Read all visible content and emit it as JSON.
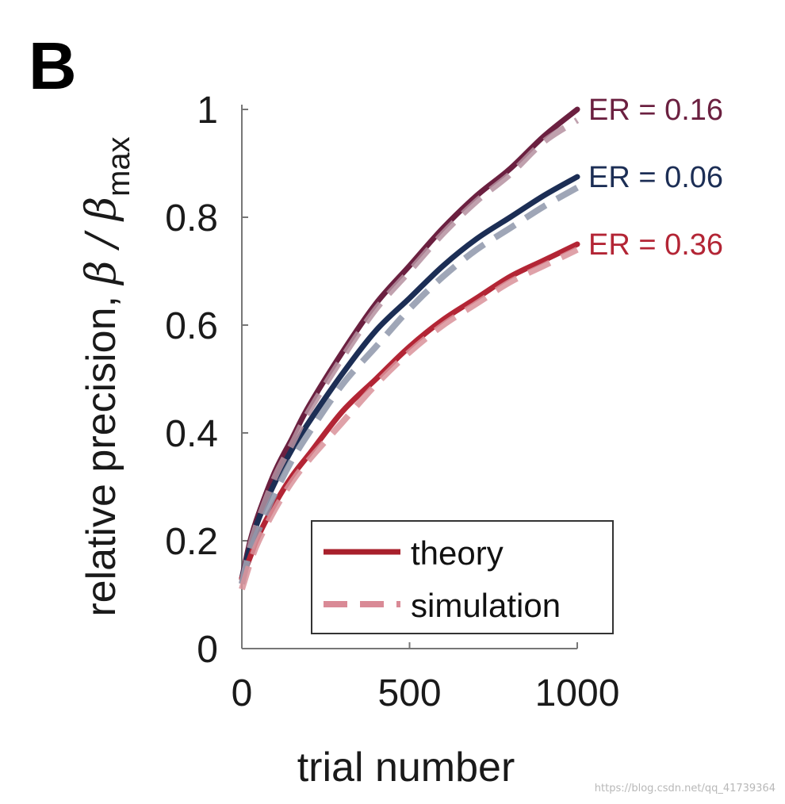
{
  "panel_label": "B",
  "watermark": "https://blog.csdn.net/qq_41739364",
  "chart_data": {
    "type": "line",
    "title": "",
    "xlabel": "trial number",
    "ylabel_text": "relative precision, ",
    "ylabel_symbol": "β / β",
    "ylabel_subscript": "max",
    "xlim": [
      0,
      1000
    ],
    "ylim": [
      0,
      1
    ],
    "xticks": [
      0,
      500,
      1000
    ],
    "xtick_labels": [
      "0",
      "500",
      "1000"
    ],
    "yticks": [
      0,
      0.2,
      0.4,
      0.6,
      0.8,
      1
    ],
    "ytick_labels": [
      "0",
      "0.2",
      "0.4",
      "0.6",
      "0.8",
      "1"
    ],
    "grid": false,
    "x": [
      0,
      25,
      50,
      100,
      150,
      200,
      300,
      400,
      500,
      600,
      700,
      800,
      900,
      1000
    ],
    "series": [
      {
        "name": "ER = 0.16",
        "label": "ER = 0.16",
        "color": "#6b2040",
        "theory": [
          0.13,
          0.2,
          0.25,
          0.33,
          0.39,
          0.45,
          0.55,
          0.64,
          0.71,
          0.78,
          0.84,
          0.89,
          0.95,
          1.0
        ],
        "simulation": [
          0.12,
          0.19,
          0.24,
          0.32,
          0.38,
          0.44,
          0.54,
          0.63,
          0.7,
          0.77,
          0.83,
          0.88,
          0.94,
          0.98
        ]
      },
      {
        "name": "ER = 0.06",
        "label": "ER = 0.06",
        "color": "#1c2e55",
        "theory": [
          0.13,
          0.19,
          0.24,
          0.31,
          0.37,
          0.42,
          0.51,
          0.59,
          0.65,
          0.71,
          0.76,
          0.8,
          0.84,
          0.875
        ],
        "simulation": [
          0.12,
          0.18,
          0.22,
          0.29,
          0.35,
          0.4,
          0.49,
          0.56,
          0.63,
          0.69,
          0.74,
          0.78,
          0.82,
          0.855
        ]
      },
      {
        "name": "ER = 0.36",
        "label": "ER = 0.36",
        "color": "#b32535",
        "theory": [
          0.13,
          0.17,
          0.21,
          0.27,
          0.32,
          0.36,
          0.44,
          0.5,
          0.56,
          0.61,
          0.65,
          0.69,
          0.72,
          0.75
        ],
        "simulation": [
          0.11,
          0.16,
          0.2,
          0.26,
          0.31,
          0.35,
          0.42,
          0.49,
          0.55,
          0.6,
          0.64,
          0.68,
          0.71,
          0.74
        ]
      }
    ],
    "legend": {
      "placement": "bottom-right",
      "entries": [
        {
          "label": "theory",
          "style": "solid",
          "color": "#a8202c"
        },
        {
          "label": "simulation",
          "style": "dashed",
          "color": "#d98a96"
        }
      ]
    }
  }
}
